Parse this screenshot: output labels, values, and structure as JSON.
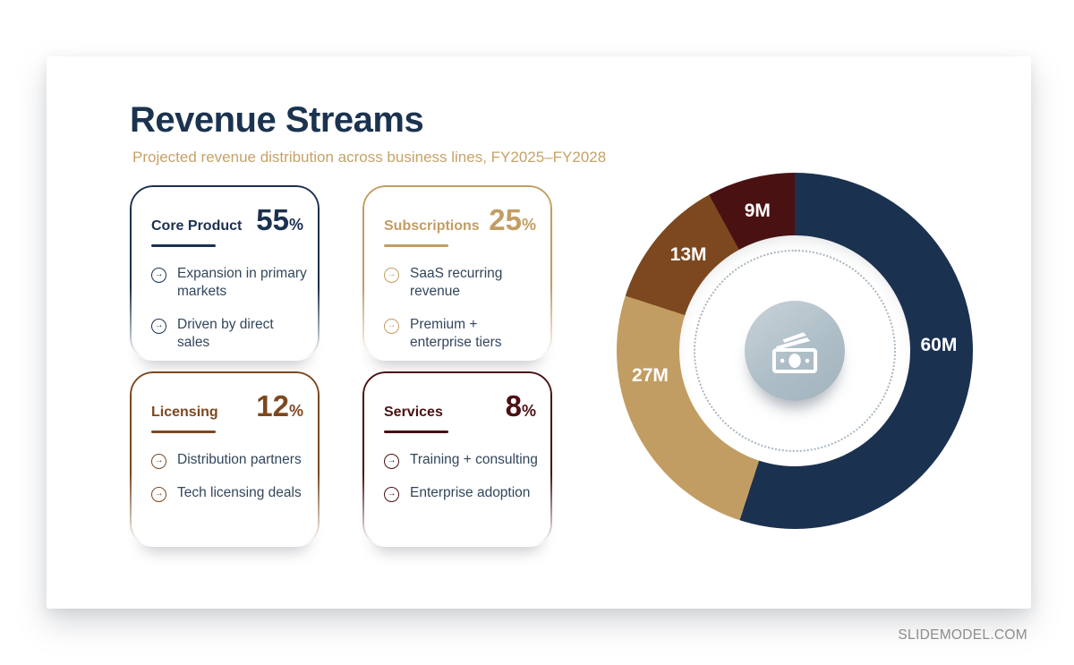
{
  "slide": {
    "title": "Revenue Streams",
    "subtitle": "Projected revenue distribution across business lines, FY2025–FY2028",
    "watermark": "SLIDEMODEL.COM"
  },
  "theme": {
    "navy": "#1b3150",
    "tan": "#c29d63",
    "brown": "#7d481f",
    "maroon": "#4a1113",
    "bullet_text": "#32465c",
    "subtitle_color": "#c7a267",
    "title_color": "#1b334f",
    "watermark_color": "#8d8d8d"
  },
  "cards": [
    {
      "name": "Core Product",
      "percent": "55",
      "percent_sign": "%",
      "color": "#1b3150",
      "bullets": [
        "Expansion in primary markets",
        "Driven by direct sales"
      ]
    },
    {
      "name": "Subscriptions",
      "percent": "25",
      "percent_sign": "%",
      "color": "#c29d63",
      "bullets": [
        "SaaS recurring revenue",
        "Premium + enterprise tiers"
      ]
    },
    {
      "name": "Licensing",
      "percent": "12",
      "percent_sign": "%",
      "color": "#7d481f",
      "bullets": [
        "Distribution partners",
        "Tech licensing deals"
      ]
    },
    {
      "name": "Services",
      "percent": "8",
      "percent_sign": "%",
      "color": "#4a1113",
      "bullets": [
        "Training + consulting",
        "Enterprise adoption"
      ]
    }
  ],
  "chart_data": {
    "type": "pie",
    "donut": true,
    "direction": "clockwise",
    "start_angle_deg": 0,
    "units": "M",
    "center_icon": "money-banknote-icon",
    "segments": [
      {
        "category": "Core Product",
        "label": "60M",
        "value": 60,
        "percent": 55,
        "color": "#1b3150",
        "label_angle_deg": 88,
        "label_radius": 161
      },
      {
        "category": "Subscriptions",
        "label": "27M",
        "value": 27,
        "percent": 25,
        "color": "#c29d63",
        "label_angle_deg": 260,
        "label_radius": 164
      },
      {
        "category": "Licensing",
        "label": "13M",
        "value": 13,
        "percent": 12,
        "color": "#7d481f",
        "label_angle_deg": 312,
        "label_radius": 160
      },
      {
        "category": "Services",
        "label": "9M",
        "value": 9,
        "percent": 8,
        "color": "#4a1113",
        "label_angle_deg": 345,
        "label_radius": 161
      }
    ]
  }
}
